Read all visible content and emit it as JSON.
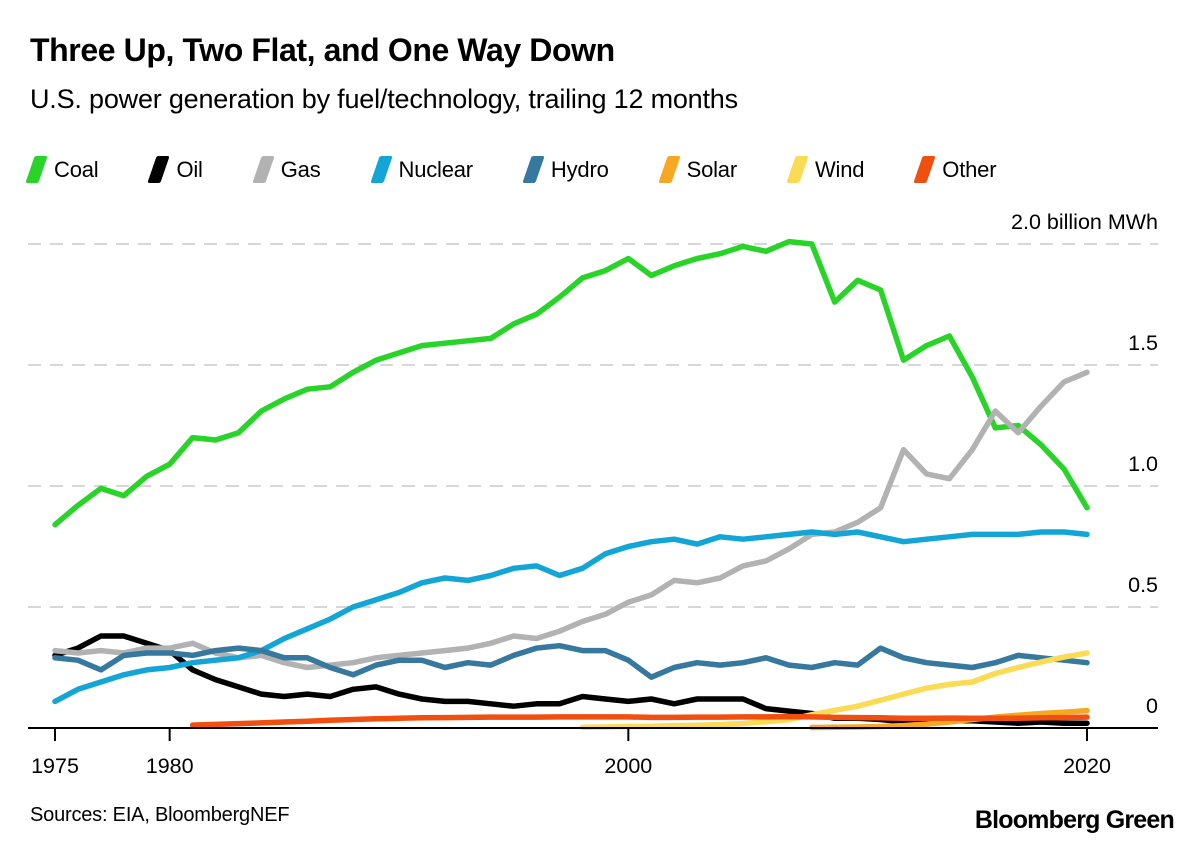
{
  "header": {
    "title": "Three Up, Two Flat, and One Way Down",
    "subtitle": "U.S. power generation by fuel/technology, trailing 12 months"
  },
  "legend": {
    "items": [
      {
        "label": "Coal",
        "color": "#28d428"
      },
      {
        "label": "Oil",
        "color": "#000000"
      },
      {
        "label": "Gas",
        "color": "#b2b2b2"
      },
      {
        "label": "Nuclear",
        "color": "#13a5d6"
      },
      {
        "label": "Hydro",
        "color": "#36789e"
      },
      {
        "label": "Solar",
        "color": "#f7a823"
      },
      {
        "label": "Wind",
        "color": "#f9db55"
      },
      {
        "label": "Other",
        "color": "#f04f0f"
      }
    ]
  },
  "footer": {
    "sources": "Sources: EIA, BloombergNEF",
    "brand": "Bloomberg Green"
  },
  "chart_data": {
    "type": "line",
    "title": "Three Up, Two Flat, and One Way Down",
    "subtitle": "U.S. power generation by fuel/technology, trailing 12 months",
    "ylabel": "billion MWh",
    "unit_label": "2.0 billion MWh",
    "ylim": [
      0,
      2.0
    ],
    "xlim": [
      1975,
      2020
    ],
    "grid": "dashed-horizontal",
    "legend_position": "top",
    "y_gridlines": [
      0.5,
      1.0,
      1.5,
      2.0
    ],
    "y_axis_labels": [
      {
        "value": 2.0,
        "label": "2.0 billion MWh"
      },
      {
        "value": 1.5,
        "label": "1.5"
      },
      {
        "value": 1.0,
        "label": "1.0"
      },
      {
        "value": 0.5,
        "label": "0.5"
      },
      {
        "value": 0.0,
        "label": "0"
      }
    ],
    "x_axis_labels": [
      {
        "year": 1975,
        "label": "1975"
      },
      {
        "year": 1980,
        "label": "1980"
      },
      {
        "year": 2000,
        "label": "2000"
      },
      {
        "year": 2020,
        "label": "2020"
      }
    ],
    "years": [
      1975,
      1976,
      1977,
      1978,
      1979,
      1980,
      1981,
      1982,
      1983,
      1984,
      1985,
      1986,
      1987,
      1988,
      1989,
      1990,
      1991,
      1992,
      1993,
      1994,
      1995,
      1996,
      1997,
      1998,
      1999,
      2000,
      2001,
      2002,
      2003,
      2004,
      2005,
      2006,
      2007,
      2008,
      2009,
      2010,
      2011,
      2012,
      2013,
      2014,
      2015,
      2016,
      2017,
      2018,
      2019,
      2020
    ],
    "series": [
      {
        "name": "Coal",
        "color": "#28d428",
        "values": [
          0.84,
          0.92,
          0.99,
          0.96,
          1.04,
          1.09,
          1.2,
          1.19,
          1.22,
          1.31,
          1.36,
          1.4,
          1.41,
          1.47,
          1.52,
          1.55,
          1.58,
          1.59,
          1.6,
          1.61,
          1.67,
          1.71,
          1.78,
          1.86,
          1.89,
          1.94,
          1.87,
          1.91,
          1.94,
          1.96,
          1.99,
          1.97,
          2.01,
          2.0,
          1.76,
          1.85,
          1.81,
          1.52,
          1.58,
          1.62,
          1.45,
          1.24,
          1.25,
          1.17,
          1.07,
          0.91
        ]
      },
      {
        "name": "Oil",
        "color": "#000000",
        "values": [
          0.3,
          0.33,
          0.38,
          0.38,
          0.35,
          0.32,
          0.24,
          0.2,
          0.17,
          0.14,
          0.13,
          0.14,
          0.13,
          0.16,
          0.17,
          0.14,
          0.12,
          0.11,
          0.11,
          0.1,
          0.09,
          0.1,
          0.1,
          0.13,
          0.12,
          0.11,
          0.12,
          0.1,
          0.12,
          0.12,
          0.12,
          0.08,
          0.07,
          0.06,
          0.04,
          0.04,
          0.035,
          0.025,
          0.03,
          0.03,
          0.03,
          0.025,
          0.02,
          0.025,
          0.02,
          0.02
        ]
      },
      {
        "name": "Gas",
        "color": "#b2b2b2",
        "values": [
          0.32,
          0.31,
          0.32,
          0.31,
          0.33,
          0.33,
          0.35,
          0.31,
          0.29,
          0.3,
          0.27,
          0.25,
          0.26,
          0.27,
          0.29,
          0.3,
          0.31,
          0.32,
          0.33,
          0.35,
          0.38,
          0.37,
          0.4,
          0.44,
          0.47,
          0.52,
          0.55,
          0.61,
          0.6,
          0.62,
          0.67,
          0.69,
          0.74,
          0.8,
          0.81,
          0.85,
          0.91,
          1.15,
          1.05,
          1.03,
          1.15,
          1.31,
          1.22,
          1.33,
          1.43,
          1.47
        ]
      },
      {
        "name": "Nuclear",
        "color": "#13a5d6",
        "values": [
          0.11,
          0.16,
          0.19,
          0.22,
          0.24,
          0.25,
          0.27,
          0.28,
          0.29,
          0.32,
          0.37,
          0.41,
          0.45,
          0.5,
          0.53,
          0.56,
          0.6,
          0.62,
          0.61,
          0.63,
          0.66,
          0.67,
          0.63,
          0.66,
          0.72,
          0.75,
          0.77,
          0.78,
          0.76,
          0.79,
          0.78,
          0.79,
          0.8,
          0.81,
          0.8,
          0.81,
          0.79,
          0.77,
          0.78,
          0.79,
          0.8,
          0.8,
          0.8,
          0.81,
          0.81,
          0.8
        ]
      },
      {
        "name": "Hydro",
        "color": "#36789e",
        "values": [
          0.29,
          0.28,
          0.24,
          0.3,
          0.31,
          0.31,
          0.3,
          0.32,
          0.33,
          0.32,
          0.29,
          0.29,
          0.25,
          0.22,
          0.26,
          0.28,
          0.28,
          0.25,
          0.27,
          0.26,
          0.3,
          0.33,
          0.34,
          0.32,
          0.32,
          0.28,
          0.21,
          0.25,
          0.27,
          0.26,
          0.27,
          0.29,
          0.26,
          0.25,
          0.27,
          0.26,
          0.33,
          0.29,
          0.27,
          0.26,
          0.25,
          0.27,
          0.3,
          0.29,
          0.28,
          0.27
        ]
      },
      {
        "name": "Solar",
        "color": "#f7a823",
        "values": [
          null,
          null,
          null,
          null,
          null,
          null,
          null,
          null,
          null,
          null,
          null,
          null,
          null,
          null,
          null,
          null,
          null,
          null,
          null,
          null,
          null,
          null,
          null,
          null,
          null,
          null,
          null,
          null,
          null,
          null,
          null,
          null,
          null,
          0.002,
          0.003,
          0.004,
          0.006,
          0.01,
          0.016,
          0.025,
          0.035,
          0.045,
          0.053,
          0.06,
          0.065,
          0.072
        ]
      },
      {
        "name": "Wind",
        "color": "#f9db55",
        "values": [
          null,
          null,
          null,
          null,
          null,
          null,
          null,
          null,
          null,
          null,
          null,
          null,
          null,
          null,
          null,
          null,
          null,
          null,
          null,
          null,
          null,
          null,
          null,
          0.003,
          0.004,
          0.006,
          0.007,
          0.01,
          0.011,
          0.014,
          0.018,
          0.026,
          0.034,
          0.055,
          0.073,
          0.09,
          0.115,
          0.14,
          0.165,
          0.18,
          0.19,
          0.225,
          0.25,
          0.273,
          0.293,
          0.31
        ]
      },
      {
        "name": "Other",
        "color": "#f04f0f",
        "values": [
          null,
          null,
          null,
          null,
          null,
          null,
          0.012,
          0.015,
          0.018,
          0.021,
          0.025,
          0.028,
          0.032,
          0.035,
          0.038,
          0.04,
          0.042,
          0.043,
          0.044,
          0.045,
          0.045,
          0.045,
          0.046,
          0.046,
          0.046,
          0.046,
          0.044,
          0.044,
          0.045,
          0.045,
          0.046,
          0.046,
          0.047,
          0.046,
          0.044,
          0.043,
          0.042,
          0.04,
          0.04,
          0.041,
          0.04,
          0.04,
          0.04,
          0.042,
          0.043,
          0.045
        ]
      }
    ]
  }
}
